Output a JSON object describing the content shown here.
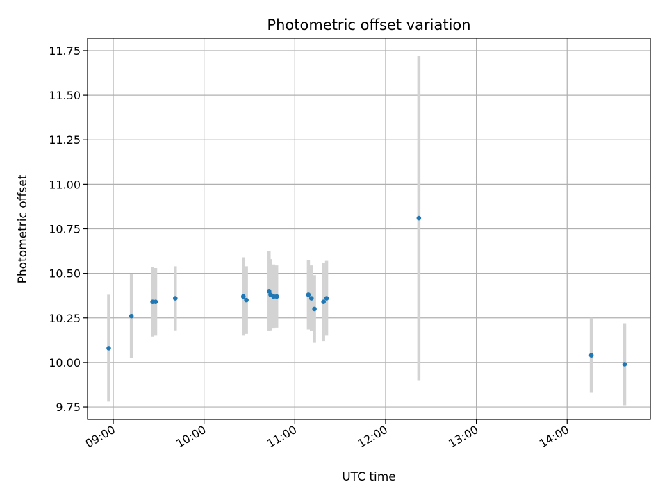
{
  "chart_data": {
    "type": "scatter",
    "title": "Photometric offset variation",
    "xlabel": "UTC time",
    "ylabel": "Photometric offset",
    "x_axis": "time",
    "xlim": [
      "08:43",
      "14:55"
    ],
    "ylim": [
      9.68,
      11.82
    ],
    "x_ticks": [
      "09:00",
      "10:00",
      "11:00",
      "12:00",
      "13:00",
      "14:00"
    ],
    "y_ticks": [
      "9.75",
      "10.00",
      "10.25",
      "10.50",
      "10.75",
      "11.00",
      "11.25",
      "11.50",
      "11.75"
    ],
    "grid": true,
    "legend": "none",
    "colors": {
      "point": "#1f77b4",
      "error_bar": "#d3d3d3",
      "grid": "#b0b0b0"
    },
    "points": [
      {
        "time": "08:57",
        "y": 10.08,
        "yerr": 0.3
      },
      {
        "time": "09:12",
        "y": 10.26,
        "yerr": 0.235
      },
      {
        "time": "09:26",
        "y": 10.34,
        "yerr": 0.195
      },
      {
        "time": "09:28",
        "y": 10.34,
        "yerr": 0.19
      },
      {
        "time": "09:41",
        "y": 10.36,
        "yerr": 0.18
      },
      {
        "time": "10:26",
        "y": 10.37,
        "yerr": 0.22
      },
      {
        "time": "10:28",
        "y": 10.35,
        "yerr": 0.19
      },
      {
        "time": "10:43",
        "y": 10.4,
        "yerr": 0.225
      },
      {
        "time": "10:44",
        "y": 10.38,
        "yerr": 0.2
      },
      {
        "time": "10:46",
        "y": 10.37,
        "yerr": 0.18
      },
      {
        "time": "10:48",
        "y": 10.37,
        "yerr": 0.175
      },
      {
        "time": "11:09",
        "y": 10.38,
        "yerr": 0.195
      },
      {
        "time": "11:11",
        "y": 10.36,
        "yerr": 0.185
      },
      {
        "time": "11:13",
        "y": 10.3,
        "yerr": 0.19
      },
      {
        "time": "11:19",
        "y": 10.34,
        "yerr": 0.22
      },
      {
        "time": "11:21",
        "y": 10.36,
        "yerr": 0.21
      },
      {
        "time": "12:22",
        "y": 10.81,
        "yerr": 0.91
      },
      {
        "time": "14:16",
        "y": 10.04,
        "yerr": 0.21
      },
      {
        "time": "14:38",
        "y": 9.99,
        "yerr": 0.23
      }
    ]
  }
}
